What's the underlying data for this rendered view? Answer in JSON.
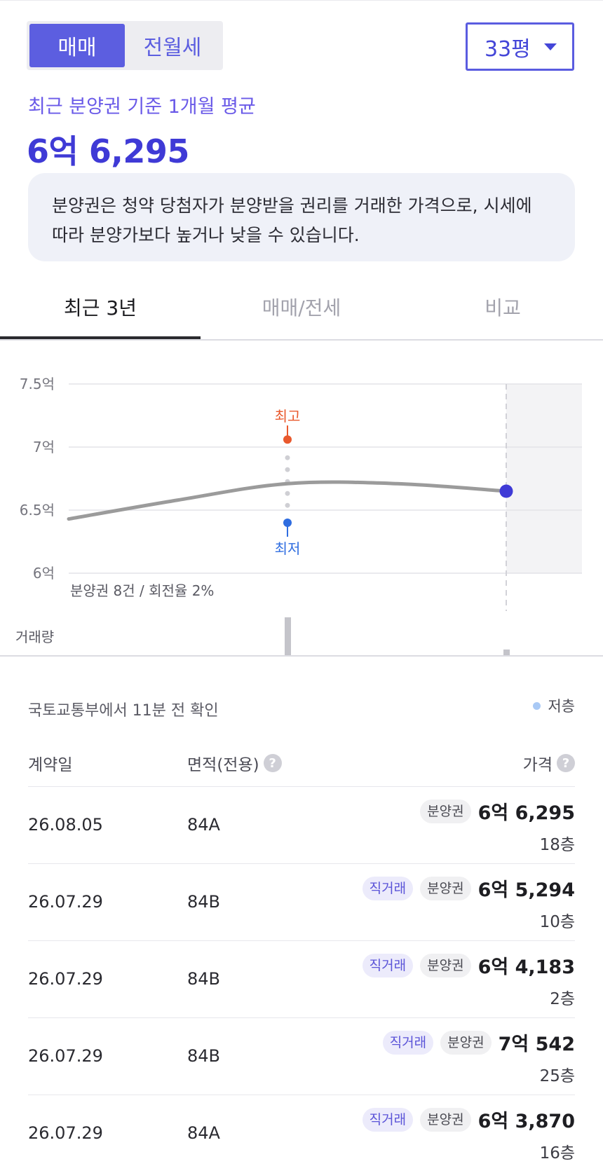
{
  "trade_toggle": {
    "options": [
      "매매",
      "전월세"
    ],
    "selected": "매매"
  },
  "size_select": {
    "value": "33평"
  },
  "summary": {
    "caption": "최근 분양권 기준 1개월 평균",
    "price": "6억 6,295"
  },
  "info_text_line1": "분양권은 청약 당첨자가 분양받을 권리를 거래한 가격으로, 시세에",
  "info_text_line2": "따라 분양가보다 높거나 낮을 수 있습니다.",
  "tabs": [
    {
      "label": "최근 3년"
    },
    {
      "label": "매매/전세"
    },
    {
      "label": "비교"
    }
  ],
  "chart_data": {
    "type": "line",
    "y_tick_labels": [
      "7.5억",
      "7억",
      "6.5억",
      "6억"
    ],
    "y_ticks": [
      7.5,
      7.0,
      6.5,
      6.0
    ],
    "ylim": [
      6.0,
      7.5
    ],
    "grid": true,
    "series": [
      {
        "x": [
          0,
          0.25,
          0.5,
          0.75,
          1.0
        ],
        "values": [
          6.43,
          6.58,
          6.71,
          6.71,
          6.65
        ]
      }
    ],
    "annotations": {
      "high_label": "최고",
      "low_label": "최저",
      "high_value": 7.06,
      "low_value": 6.4,
      "marker_x": 0.5,
      "current_value": 6.65
    },
    "summary_text": "분양권 8건 / 회전율 2%",
    "volume_label": "거래량",
    "volume_values": [
      {
        "x": 0.5,
        "value": 1.0
      },
      {
        "x": 1.0,
        "value": 0.15
      }
    ],
    "colors": {
      "line": "#9b9b9b",
      "high": "#e9592d",
      "low": "#2f6de0",
      "current": "#3f3ad6"
    }
  },
  "source_text": "국토교통부에서 11분 전 확인",
  "legend_label": "저층",
  "table": {
    "headers": {
      "date": "계약일",
      "area": "면적(전용)",
      "price": "가격"
    },
    "rows": [
      {
        "date": "26.08.05",
        "area": "84A",
        "direct": "",
        "presale": "분양권",
        "price": "6억 6,295",
        "floor": "18층"
      },
      {
        "date": "26.07.29",
        "area": "84B",
        "direct": "직거래",
        "presale": "분양권",
        "price": "6억 5,294",
        "floor": "10층"
      },
      {
        "date": "26.07.29",
        "area": "84B",
        "direct": "직거래",
        "presale": "분양권",
        "price": "6억 4,183",
        "floor": "2층"
      },
      {
        "date": "26.07.29",
        "area": "84B",
        "direct": "직거래",
        "presale": "분양권",
        "price": "7억 542",
        "floor": "25층"
      },
      {
        "date": "26.07.29",
        "area": "84A",
        "direct": "직거래",
        "presale": "분양권",
        "price": "6억 3,870",
        "floor": "16층"
      }
    ]
  }
}
